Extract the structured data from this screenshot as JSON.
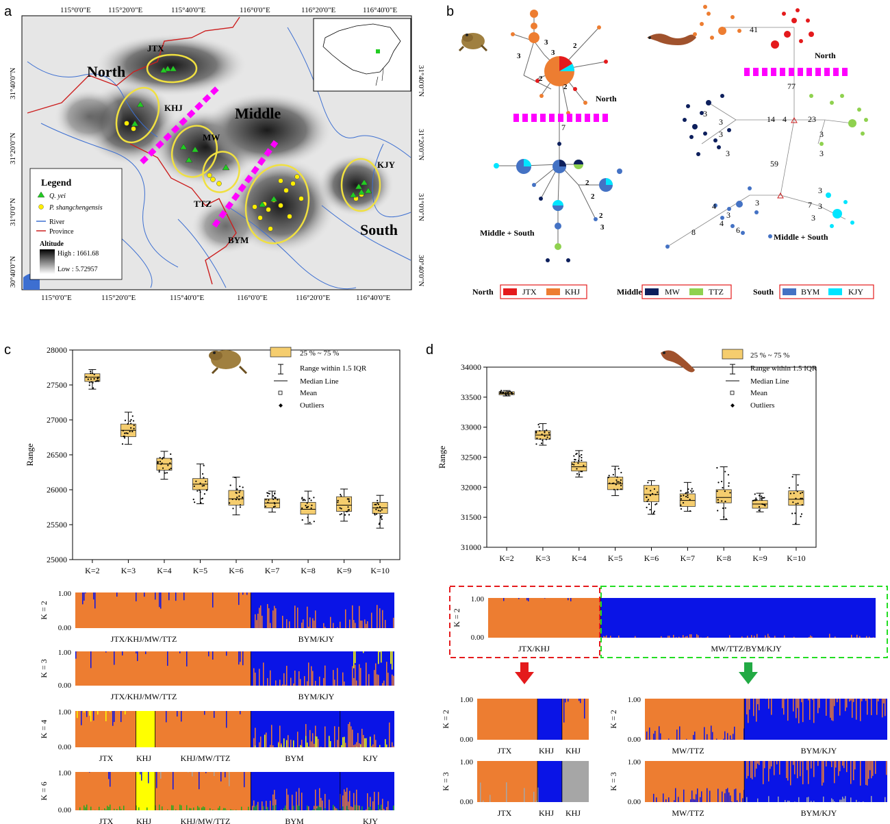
{
  "panels": {
    "a": "a",
    "b": "b",
    "c": "c",
    "d": "d"
  },
  "map": {
    "lon_ticks": [
      "115°0'0\"E",
      "115°20'0\"E",
      "115°40'0\"E",
      "116°0'0\"E",
      "116°20'0\"E",
      "116°40'0\"E"
    ],
    "lat_ticks": [
      "31°40'0\"N",
      "31°20'0\"N",
      "31°0'0\"N",
      "30°40'0\"N"
    ],
    "regions": {
      "north": "North",
      "middle": "Middle",
      "south": "South"
    },
    "sites": [
      "JTX",
      "KHJ",
      "MW",
      "TTZ",
      "BYM",
      "KJY"
    ],
    "legend": {
      "title": "Legend",
      "q_yei": "Q. yei",
      "p_shang": "P. shangchengensis",
      "river": "River",
      "province": "Province",
      "altitude": "Altitude",
      "high": "High : 1661.68",
      "low": "Low : 5.72957"
    },
    "colors": {
      "q_yei": "#22cc22",
      "p_shang": "#ffee00",
      "river": "#3d6fd1",
      "province": "#cc1f1f",
      "barrier": "#ff00ff",
      "ellipse": "#f0e040"
    }
  },
  "network": {
    "frog_labels": {
      "north": "North",
      "middle_south": "Middle + South",
      "link": "7",
      "steps": [
        "3",
        "3",
        "2",
        "2",
        "2",
        "2",
        "2",
        "3",
        "2",
        "3"
      ]
    },
    "salamander_labels": {
      "north": "North",
      "middle_south": "Middle + South",
      "links": [
        "41",
        "77",
        "14",
        "4",
        "23",
        "59",
        "3",
        "3",
        "3",
        "3",
        "3",
        "3",
        "4",
        "4",
        "3",
        "3",
        "6",
        "8",
        "7",
        "3",
        "3",
        "3"
      ]
    },
    "legend": {
      "north": "North",
      "middle": "Middle",
      "south": "South",
      "items": [
        {
          "group": "north",
          "name": "JTX",
          "color": "#e41a1c"
        },
        {
          "group": "north",
          "name": "KHJ",
          "color": "#ed7d31"
        },
        {
          "group": "middle",
          "name": "MW",
          "color": "#0d1f5c"
        },
        {
          "group": "middle",
          "name": "TTZ",
          "color": "#8fd14f"
        },
        {
          "group": "south",
          "name": "BYM",
          "color": "#4472c4"
        },
        {
          "group": "south",
          "name": "KJY",
          "color": "#00e5ff"
        }
      ]
    }
  },
  "box_legend": {
    "box": "25 % ~ 75 %",
    "whisker": "Range within 1.5 IQR",
    "median": "Median Line",
    "mean": "Mean",
    "outliers": "Outliers"
  },
  "chart_data": [
    {
      "type": "box",
      "panel": "c",
      "ylabel": "Range",
      "categories": [
        "K=2",
        "K=3",
        "K=4",
        "K=5",
        "K=6",
        "K=7",
        "K=8",
        "K=9",
        "K=10"
      ],
      "ylim": [
        25000,
        28000
      ],
      "yticks": [
        25000,
        25500,
        26000,
        26500,
        27000,
        27500,
        28000
      ],
      "boxes": [
        {
          "q1": 27550,
          "median": 27610,
          "q3": 27660,
          "lo": 27440,
          "hi": 27720
        },
        {
          "q1": 26760,
          "median": 26850,
          "q3": 26940,
          "lo": 26650,
          "hi": 27110
        },
        {
          "q1": 26280,
          "median": 26370,
          "q3": 26450,
          "lo": 26150,
          "hi": 26550
        },
        {
          "q1": 26000,
          "median": 26080,
          "q3": 26160,
          "lo": 25800,
          "hi": 26370
        },
        {
          "q1": 25780,
          "median": 25870,
          "q3": 25990,
          "lo": 25640,
          "hi": 26180
        },
        {
          "q1": 25740,
          "median": 25810,
          "q3": 25870,
          "lo": 25680,
          "hi": 25980
        },
        {
          "q1": 25650,
          "median": 25720,
          "q3": 25820,
          "lo": 25510,
          "hi": 25980
        },
        {
          "q1": 25690,
          "median": 25780,
          "q3": 25900,
          "lo": 25550,
          "hi": 26010
        },
        {
          "q1": 25660,
          "median": 25740,
          "q3": 25820,
          "lo": 25450,
          "hi": 25920
        }
      ]
    },
    {
      "type": "box",
      "panel": "d",
      "ylabel": "Range",
      "categories": [
        "K=2",
        "K=3",
        "K=4",
        "K=5",
        "K=6",
        "K=7",
        "K=8",
        "K=9",
        "K=10"
      ],
      "ylim": [
        31000,
        34000
      ],
      "yticks": [
        31000,
        31500,
        32000,
        32500,
        33000,
        33500,
        34000
      ],
      "boxes": [
        {
          "q1": 33540,
          "median": 33560,
          "q3": 33590,
          "lo": 33520,
          "hi": 33610
        },
        {
          "q1": 32800,
          "median": 32870,
          "q3": 32940,
          "lo": 32700,
          "hi": 33060
        },
        {
          "q1": 32270,
          "median": 32340,
          "q3": 32420,
          "lo": 32170,
          "hi": 32610
        },
        {
          "q1": 31960,
          "median": 32060,
          "q3": 32170,
          "lo": 31860,
          "hi": 32350
        },
        {
          "q1": 31760,
          "median": 31880,
          "q3": 32030,
          "lo": 31550,
          "hi": 32110
        },
        {
          "q1": 31680,
          "median": 31780,
          "q3": 31890,
          "lo": 31600,
          "hi": 32080
        },
        {
          "q1": 31740,
          "median": 31830,
          "q3": 31960,
          "lo": 31460,
          "hi": 32340
        },
        {
          "q1": 31650,
          "median": 31720,
          "q3": 31780,
          "lo": 31590,
          "hi": 31900
        },
        {
          "q1": 31700,
          "median": 31800,
          "q3": 31940,
          "lo": 31380,
          "hi": 32210
        }
      ]
    }
  ],
  "structure": {
    "yticks": [
      "1.00",
      "0.00"
    ],
    "c": [
      {
        "k": "K = 2",
        "groups": [
          "JTX/KHJ/MW/TTZ",
          "BYM/KJY"
        ]
      },
      {
        "k": "K = 3",
        "groups": [
          "JTX/KHJ/MW/TTZ",
          "BYM/KJY"
        ]
      },
      {
        "k": "K = 4",
        "groups": [
          "JTX",
          "KHJ",
          "KHJ/MW/TTZ",
          "BYM",
          "KJY"
        ]
      },
      {
        "k": "K = 6",
        "groups": [
          "JTX",
          "KHJ",
          "KHJ/MW/TTZ",
          "BYM",
          "KJY"
        ]
      }
    ],
    "d_top": {
      "k": "K = 2",
      "groups": [
        "JTX/KHJ",
        "MW/TTZ/BYM/KJY"
      ]
    },
    "d_left": [
      {
        "k": "K = 2",
        "groups": [
          "JTX",
          "KHJ",
          "KHJ"
        ]
      },
      {
        "k": "K = 3",
        "groups": [
          "JTX",
          "KHJ",
          "KHJ"
        ]
      }
    ],
    "d_right": [
      {
        "k": "K = 2",
        "groups": [
          "MW/TTZ",
          "BYM/KJY"
        ]
      },
      {
        "k": "K = 3",
        "groups": [
          "MW/TTZ",
          "BYM/KJY"
        ]
      }
    ],
    "colors": {
      "orange": "#ed7d31",
      "blue": "#0a14e6",
      "yellow": "#ffff00",
      "grey": "#a6a6a6",
      "green": "#22aa22",
      "red": "#e41a1c"
    }
  }
}
